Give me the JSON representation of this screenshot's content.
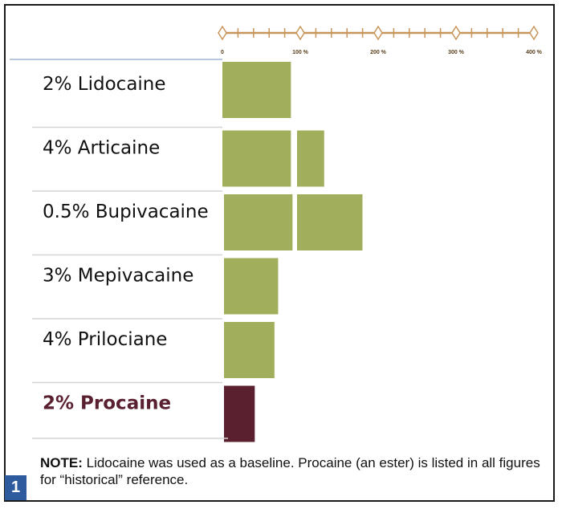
{
  "chart_data": {
    "type": "bar",
    "orientation": "horizontal",
    "categories": [
      "2% Lidocaine",
      "4% Articaine",
      "0.5% Bupivacaine",
      "3% Mepivacaine",
      "4% Prilociane",
      "2% Procaine"
    ],
    "highlight_category": "2% Procaine",
    "series": [
      {
        "values": [
          100,
          100,
          100,
          88,
          82,
          50
        ]
      },
      {
        "values": [
          null,
          40,
          100,
          null,
          null,
          null
        ]
      }
    ],
    "x_ticks": [
      "0",
      "100 %",
      "200 %",
      "300 %",
      "400 %"
    ],
    "xlim": [
      0,
      400
    ],
    "grid": false,
    "colors": {
      "bar": "#a1ae5c",
      "highlight": "#5a2030",
      "axis": "#c8955a",
      "separator": "#d4d4d4",
      "header_line": "#9db6d0"
    }
  },
  "note": {
    "bold": "NOTE:",
    "text": " Lidocaine was used as a baseline. Procaine (an ester) is listed in all figures for “historical” reference."
  },
  "figure_number": "1"
}
